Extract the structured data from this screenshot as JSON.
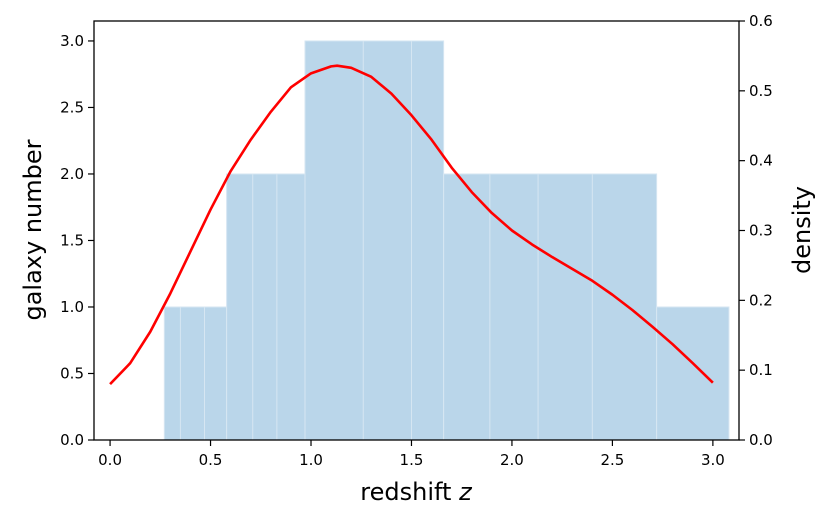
{
  "chart_data": {
    "type": "bar",
    "title": "",
    "xlabel": "redshift",
    "xlabel_var": "z",
    "ylabel_left": "galaxy number",
    "ylabel_right": "density",
    "xlim": [
      -0.08,
      3.13
    ],
    "ylim_left": [
      0,
      3.15
    ],
    "ylim_right": [
      0,
      0.6
    ],
    "x_ticks": [
      "0.0",
      "0.5",
      "1.0",
      "1.5",
      "2.0",
      "2.5",
      "3.0"
    ],
    "y_left_ticks": [
      "0.0",
      "0.5",
      "1.0",
      "1.5",
      "2.0",
      "2.5",
      "3.0"
    ],
    "y_right_ticks": [
      "0.0",
      "0.1",
      "0.2",
      "0.3",
      "0.4",
      "0.5",
      "0.6"
    ],
    "grid": false,
    "histogram": {
      "color": "#bad6ea",
      "edge_color": "#d6e6f2",
      "bins": [
        {
          "x0": 0.27,
          "x1": 0.58,
          "count": 1
        },
        {
          "x0": 0.58,
          "x1": 0.97,
          "count": 2
        },
        {
          "x0": 0.97,
          "x1": 1.66,
          "count": 3
        },
        {
          "x0": 1.66,
          "x1": 2.72,
          "count": 2
        },
        {
          "x0": 2.72,
          "x1": 3.08,
          "count": 1
        }
      ],
      "inner_edges": [
        0.35,
        0.47,
        0.71,
        0.83,
        1.26,
        1.5,
        1.89,
        2.13,
        2.4
      ]
    },
    "density_curve": {
      "color": "#ff0000",
      "x": [
        0.0,
        0.1,
        0.2,
        0.3,
        0.4,
        0.5,
        0.6,
        0.7,
        0.8,
        0.9,
        1.0,
        1.1,
        1.13,
        1.2,
        1.3,
        1.4,
        1.5,
        1.6,
        1.7,
        1.8,
        1.9,
        2.0,
        2.1,
        2.2,
        2.3,
        2.4,
        2.5,
        2.6,
        2.7,
        2.8,
        2.9,
        3.0
      ],
      "y": [
        0.08,
        0.11,
        0.155,
        0.21,
        0.27,
        0.33,
        0.385,
        0.43,
        0.47,
        0.505,
        0.525,
        0.535,
        0.536,
        0.533,
        0.52,
        0.496,
        0.465,
        0.43,
        0.39,
        0.355,
        0.325,
        0.3,
        0.28,
        0.262,
        0.245,
        0.228,
        0.208,
        0.186,
        0.162,
        0.137,
        0.11,
        0.082
      ]
    }
  }
}
